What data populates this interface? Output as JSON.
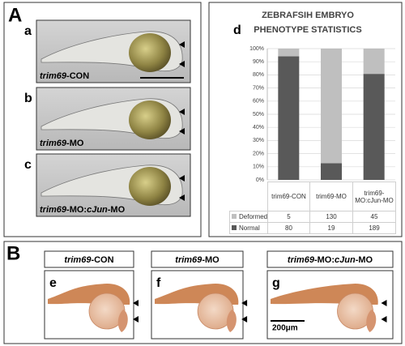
{
  "panel_A": {
    "label": "A",
    "images": [
      {
        "letter": "a",
        "caption": [
          {
            "text": "trim69",
            "italic": true
          },
          {
            "text": "-CON",
            "italic": false
          }
        ]
      },
      {
        "letter": "b",
        "caption": [
          {
            "text": "trim69",
            "italic": true
          },
          {
            "text": "-MO",
            "italic": false
          }
        ]
      },
      {
        "letter": "c",
        "caption": [
          {
            "text": "trim69",
            "italic": true
          },
          {
            "text": "-MO:",
            "italic": false
          },
          {
            "text": "cJun",
            "italic": true
          },
          {
            "text": "-MO",
            "italic": false
          }
        ]
      }
    ]
  },
  "chart_data": {
    "type": "bar",
    "stacked": "percent",
    "letter": "d",
    "title": [
      "ZEBRAFSIH EMBRYO",
      "PHENOTYPE STATISTICS"
    ],
    "categories": [
      "trim69-CON",
      "trim69-MO",
      "trim69-MO:cJun-MO"
    ],
    "series": [
      {
        "name": "Deformed",
        "color": "#bfbfbf",
        "values": [
          5,
          130,
          45
        ]
      },
      {
        "name": "Normal",
        "color": "#595959",
        "values": [
          80,
          19,
          189
        ]
      }
    ],
    "ylim": [
      0,
      100
    ],
    "yticks": [
      {
        "value": 0,
        "label": "0%"
      },
      {
        "value": 10,
        "label": "10%"
      },
      {
        "value": 20,
        "label": "20%"
      },
      {
        "value": 30,
        "label": "30%"
      },
      {
        "value": 40,
        "label": "40%"
      },
      {
        "value": 50,
        "label": "50%"
      },
      {
        "value": 60,
        "label": "60%"
      },
      {
        "value": 70,
        "label": "70%"
      },
      {
        "value": 80,
        "label": "80%"
      },
      {
        "value": 90,
        "label": "90%"
      },
      {
        "value": 100,
        "label": "100%"
      }
    ],
    "grid": true
  },
  "panel_B": {
    "label": "B",
    "columns": [
      {
        "letter": "e",
        "header": [
          {
            "text": "trim69",
            "italic": true
          },
          {
            "text": "-CON",
            "italic": false
          }
        ]
      },
      {
        "letter": "f",
        "header": [
          {
            "text": "trim69",
            "italic": true
          },
          {
            "text": "-MO",
            "italic": false
          }
        ]
      },
      {
        "letter": "g",
        "header": [
          {
            "text": "trim69",
            "italic": true
          },
          {
            "text": "-MO:",
            "italic": false
          },
          {
            "text": "cJun",
            "italic": true
          },
          {
            "text": "-MO",
            "italic": false
          }
        ]
      }
    ],
    "scale_bar": "200μm"
  }
}
